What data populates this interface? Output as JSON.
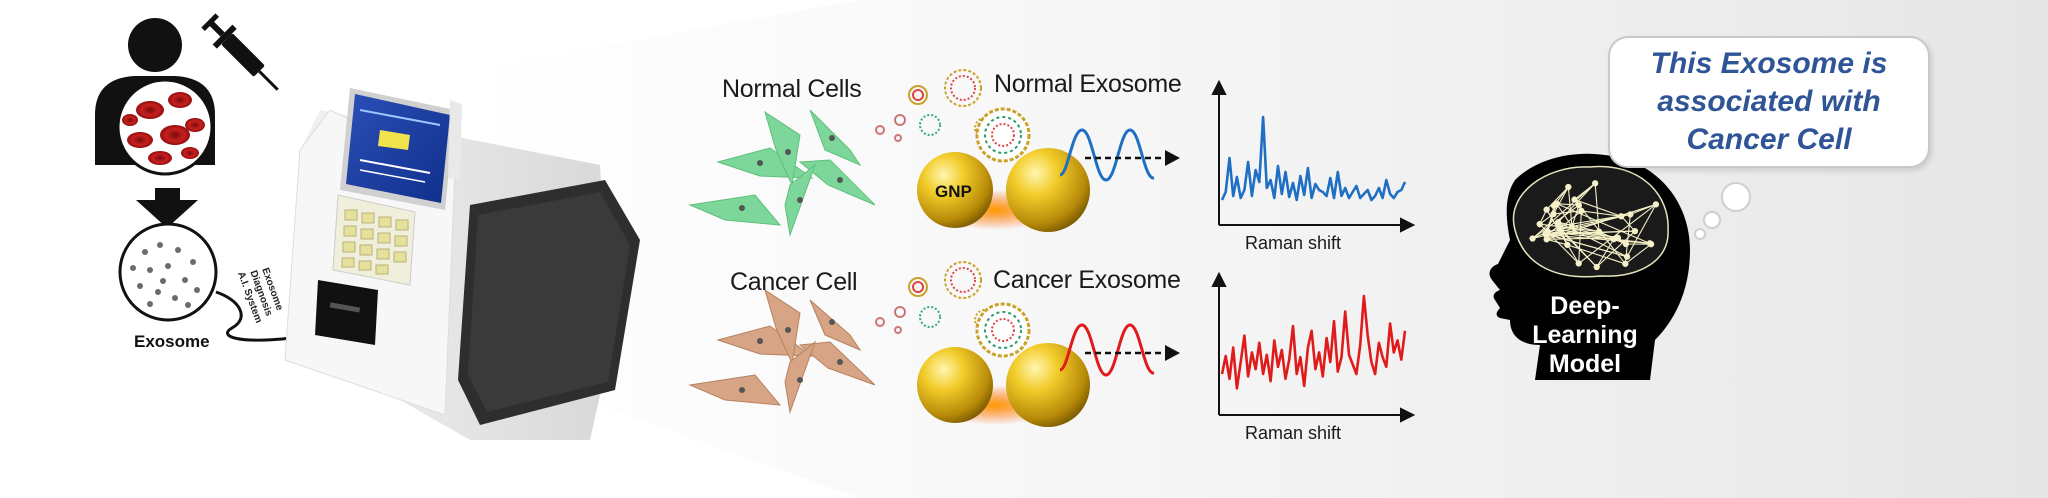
{
  "labels": {
    "exosome": "Exosome",
    "device_line1": "Exosome",
    "device_line2": "Diagnosis",
    "device_line3": "A.I. System",
    "normal_cells": "Normal Cells",
    "normal_exosome": "Normal Exosome",
    "cancer_cell": "Cancer Cell",
    "cancer_exosome": "Cancer Exosome",
    "gnp": "GNP",
    "raman_shift_top": "Raman shift",
    "raman_shift_bottom": "Raman shift",
    "model_line1": "Deep-",
    "model_line2": "Learning",
    "model_line3": "Model",
    "bubble_line1": "This Exosome is",
    "bubble_line2": "associated with",
    "bubble_line3": "Cancer Cell"
  },
  "colors": {
    "normal_cell": "#7ed79a",
    "cancer_cell": "#d7a486",
    "normal_spectrum": "#1f6fc4",
    "cancer_spectrum": "#e01b1b",
    "gold": "#e0b219",
    "bubble_text": "#2f5597",
    "head": "#000000"
  },
  "spectra": {
    "normal": [
      0.1,
      0.18,
      0.52,
      0.14,
      0.33,
      0.12,
      0.2,
      0.48,
      0.14,
      0.4,
      0.28,
      0.93,
      0.22,
      0.3,
      0.12,
      0.44,
      0.16,
      0.38,
      0.13,
      0.27,
      0.1,
      0.34,
      0.15,
      0.42,
      0.12,
      0.26,
      0.2,
      0.18,
      0.14,
      0.32,
      0.12,
      0.38,
      0.14,
      0.22,
      0.12,
      0.18,
      0.24,
      0.12,
      0.16,
      0.2,
      0.1,
      0.14,
      0.22,
      0.12,
      0.3,
      0.16,
      0.12,
      0.18,
      0.2,
      0.28
    ],
    "cancer": [
      0.3,
      0.45,
      0.26,
      0.52,
      0.18,
      0.4,
      0.62,
      0.28,
      0.48,
      0.34,
      0.56,
      0.3,
      0.46,
      0.24,
      0.58,
      0.36,
      0.5,
      0.26,
      0.42,
      0.7,
      0.3,
      0.44,
      0.2,
      0.52,
      0.66,
      0.34,
      0.48,
      0.28,
      0.6,
      0.4,
      0.74,
      0.32,
      0.44,
      0.82,
      0.46,
      0.38,
      0.3,
      0.54,
      0.95,
      0.62,
      0.4,
      0.3,
      0.56,
      0.44,
      0.36,
      0.72,
      0.48,
      0.58,
      0.42,
      0.66
    ]
  }
}
